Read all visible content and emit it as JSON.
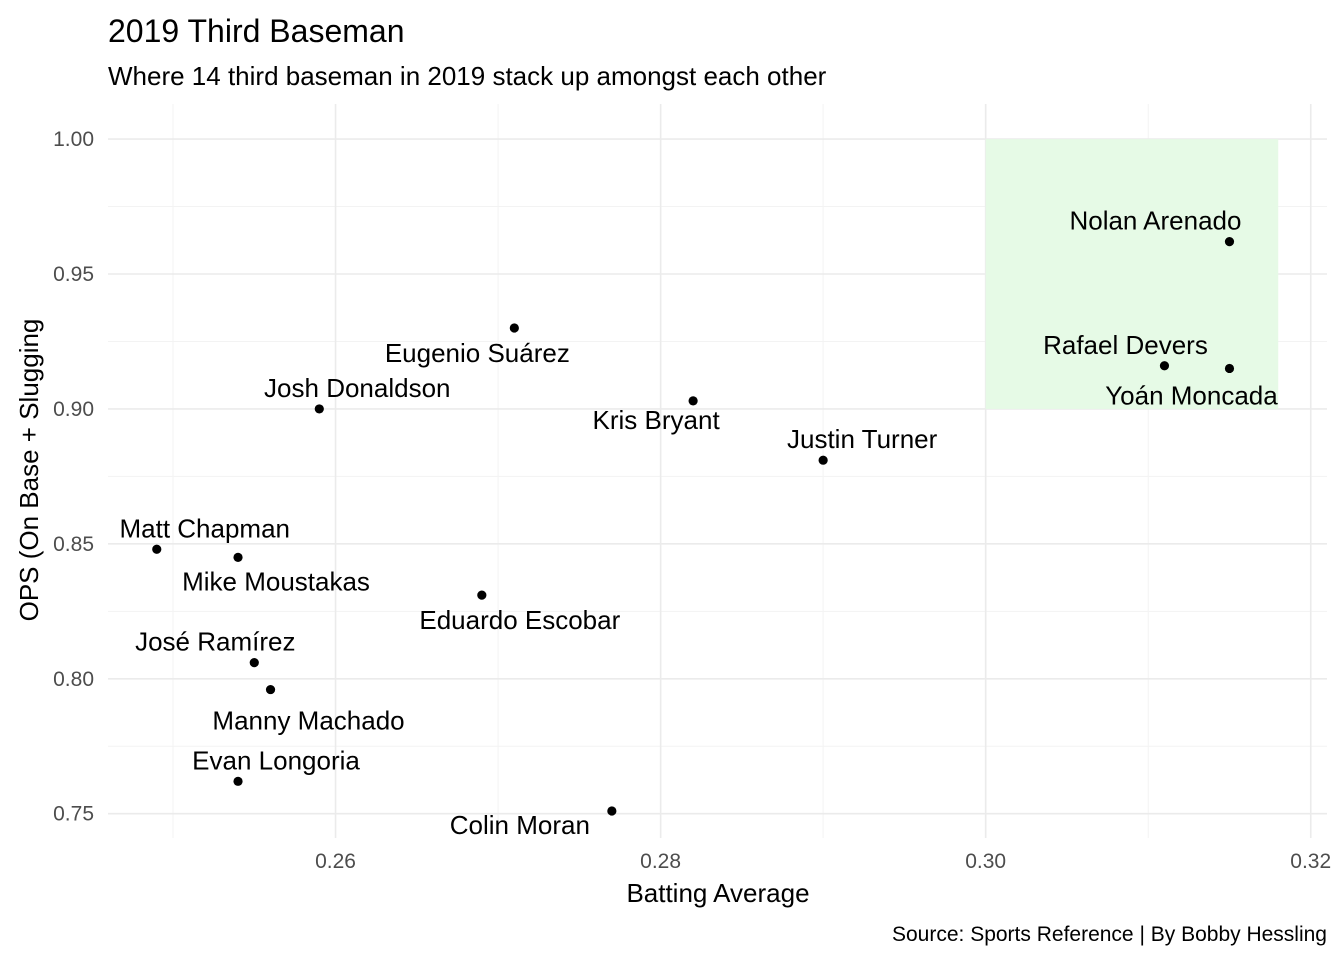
{
  "chart_data": {
    "type": "scatter",
    "title": "2019 Third Baseman",
    "subtitle": "Where 14 third baseman in 2019 stack up amongst each other",
    "xlabel": "Batting Average",
    "ylabel": "OPS (On Base + Slugging",
    "caption": "Source: Sports Reference | By Bobby Hessling",
    "xlim": [
      0.246,
      0.321
    ],
    "ylim": [
      0.741,
      1.013
    ],
    "x_ticks": [
      "0.26",
      "0.28",
      "0.30",
      "0.32"
    ],
    "y_ticks": [
      "0.75",
      "0.80",
      "0.85",
      "0.90",
      "0.95",
      "1.00"
    ],
    "grid": true,
    "highlight_region": {
      "x": [
        0.3,
        0.318
      ],
      "y": [
        0.9,
        1.0
      ],
      "color": "#e6fae6"
    },
    "point_color": "#000000",
    "points": [
      {
        "name": "Nolan Arenado",
        "x": 0.315,
        "y": 0.962
      },
      {
        "name": "Rafael Devers",
        "x": 0.311,
        "y": 0.916
      },
      {
        "name": "Yoán Moncada",
        "x": 0.315,
        "y": 0.915
      },
      {
        "name": "Eugenio Suárez",
        "x": 0.271,
        "y": 0.93
      },
      {
        "name": "Josh Donaldson",
        "x": 0.259,
        "y": 0.9
      },
      {
        "name": "Kris Bryant",
        "x": 0.282,
        "y": 0.903
      },
      {
        "name": "Justin Turner",
        "x": 0.29,
        "y": 0.881
      },
      {
        "name": "Matt Chapman",
        "x": 0.249,
        "y": 0.848
      },
      {
        "name": "Mike Moustakas",
        "x": 0.254,
        "y": 0.845
      },
      {
        "name": "Eduardo Escobar",
        "x": 0.269,
        "y": 0.831
      },
      {
        "name": "José Ramírez",
        "x": 0.255,
        "y": 0.806
      },
      {
        "name": "Manny Machado",
        "x": 0.256,
        "y": 0.796
      },
      {
        "name": "Evan Longoria",
        "x": 0.254,
        "y": 0.762
      },
      {
        "name": "Colin Moran",
        "x": 0.277,
        "y": 0.751
      }
    ]
  }
}
